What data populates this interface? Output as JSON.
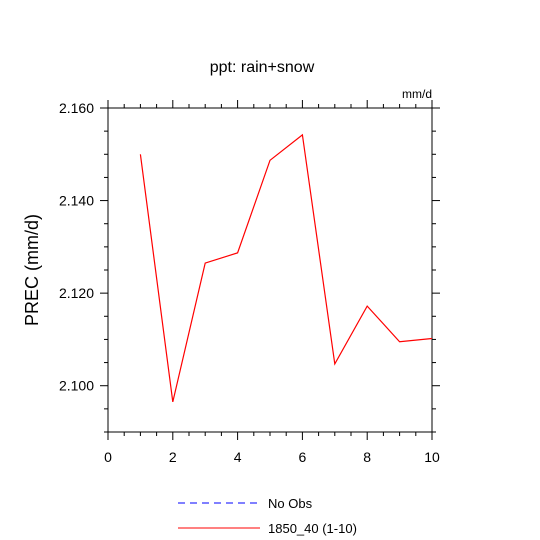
{
  "chart_data": {
    "type": "line",
    "title": "ppt: rain+snow",
    "units_label": "mm/d",
    "ylabel": "PREC  (mm/d)",
    "xlabel": "",
    "xlim": [
      0,
      10
    ],
    "ylim": [
      2.09,
      2.16
    ],
    "x_ticks": [
      0,
      2,
      4,
      6,
      8,
      10
    ],
    "x_tick_labels": [
      "0",
      "2",
      "4",
      "6",
      "8",
      "10"
    ],
    "y_ticks": [
      2.1,
      2.12,
      2.14,
      2.16
    ],
    "y_tick_labels": [
      "2.100",
      "2.120",
      "2.140",
      "2.160"
    ],
    "grid": false,
    "legend_position": "bottom",
    "series": [
      {
        "name": "1850_40 (1-10)",
        "color": "#ff0000",
        "dash": "solid",
        "x": [
          1,
          2,
          3,
          4,
          5,
          6,
          7,
          8,
          9,
          10
        ],
        "y": [
          2.15,
          2.0965,
          2.1265,
          2.1287,
          2.1487,
          2.1542,
          2.1047,
          2.1172,
          2.1095,
          2.1102
        ]
      }
    ],
    "legend": [
      {
        "label": "No Obs",
        "color": "#0000ff",
        "dash": "dashed"
      },
      {
        "label": "1850_40 (1-10)",
        "color": "#ff0000",
        "dash": "solid"
      }
    ]
  }
}
